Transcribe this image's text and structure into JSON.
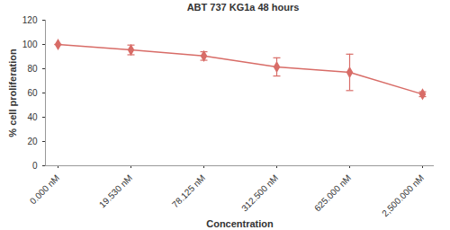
{
  "chart_data": {
    "type": "line",
    "title": "ABT 737 KG1a 48 hours",
    "x_label": "Concentration",
    "y_label": "% cell proliferation",
    "categories": [
      "0.000 nM",
      "19.530 nM",
      "78.125 nM",
      "312.500 nM",
      "625.000 nM",
      "2,500.000 nM"
    ],
    "values": [
      100,
      95.5,
      90.5,
      81.5,
      77,
      59
    ],
    "errors": [
      0,
      4,
      3.5,
      7.5,
      15,
      2
    ],
    "color": "#d86c67",
    "marker": "diamond",
    "ylim": [
      0,
      120
    ],
    "yticks": [
      0,
      20,
      40,
      60,
      80,
      100,
      120
    ],
    "grid": false
  }
}
